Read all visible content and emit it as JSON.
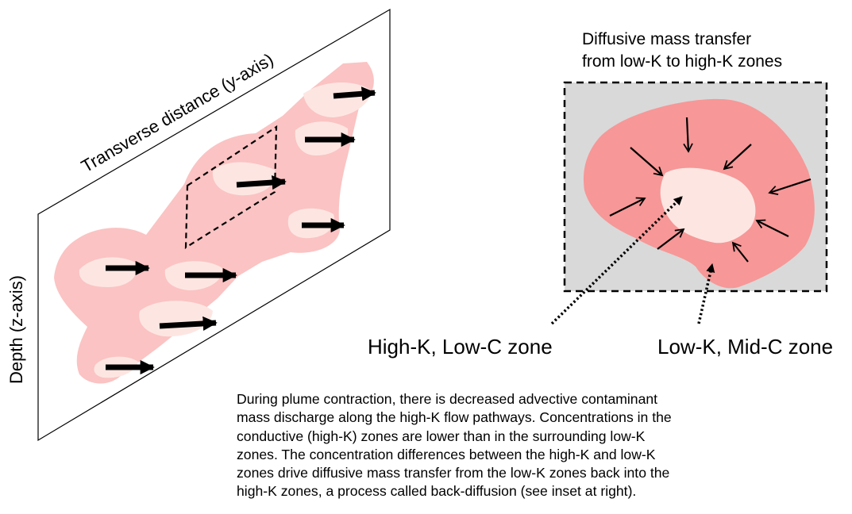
{
  "axes": {
    "transverse_label": "Transverse distance (y-axis)",
    "depth_label": "Depth (z-axis)"
  },
  "inset": {
    "title_lines": [
      "Diffusive mass transfer",
      "from low-K to high-K zones"
    ]
  },
  "zone_labels": {
    "high_k": "High-K, Low-C zone",
    "low_k": "Low-K, Mid-C zone"
  },
  "caption": {
    "lines": [
      "During plume contraction, there is decreased advective contaminant",
      "mass discharge along the high-K flow pathways.  Concentrations in the",
      "conductive (high-K) zones are lower than in the surrounding low-K",
      "zones.  The concentration differences between the high-K and low-K",
      "zones drive diffusive mass transfer from the low-K zones back into the",
      "high-K zones, a process called back-diffusion (see inset at right)."
    ]
  },
  "colors": {
    "plume_low_k": "#fbc3c3",
    "high_k_zone": "#fde6e2",
    "inset_background": "#d9d9d9",
    "inset_low_k": "#f79797",
    "inset_high_k": "#fde6e2",
    "arrows": "#000000"
  }
}
